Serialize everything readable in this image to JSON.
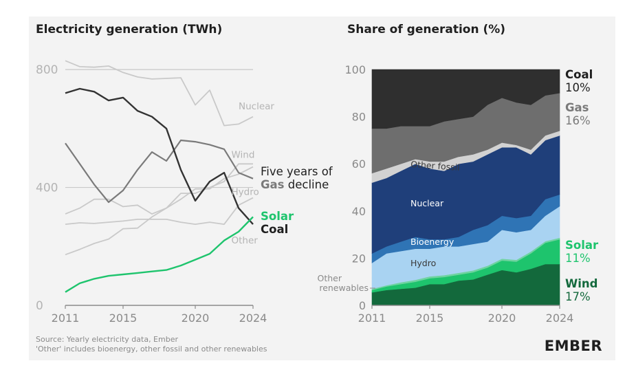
{
  "colors": {
    "background": "#f3f3f3",
    "axis": "#8a8a8a",
    "gridline": "#c8c8c8",
    "solar": "#1ec46d",
    "coal": "#333333",
    "gas": "#7a7a7a",
    "faded": "#c9c9c9",
    "label_grey": "#b4b4b4",
    "stack_coal": "#2f2f2f",
    "stack_gas": "#6e6e6e",
    "stack_other_fossil": "#d2d2d2",
    "stack_nuclear": "#1f3f7a",
    "stack_bioenergy": "#2f74b5",
    "stack_hydro": "#a9d3f2",
    "stack_other_renewables": "#6fd3a0",
    "stack_solar": "#1ec46d",
    "stack_wind": "#13693c",
    "brand": "#1f1f1f"
  },
  "chart_data": [
    {
      "type": "line",
      "title": "Electricity generation (TWh)",
      "xlim": [
        2011,
        2024
      ],
      "ylim": [
        0,
        840
      ],
      "yticks": [
        "0",
        "400",
        "800"
      ],
      "xticks": [
        "2011",
        "2015",
        "2020",
        "2024"
      ],
      "x": [
        2011,
        2012,
        2013,
        2014,
        2015,
        2016,
        2017,
        2018,
        2019,
        2020,
        2021,
        2022,
        2023,
        2024
      ],
      "series": [
        {
          "name": "Nuclear",
          "emphasis": "faded",
          "values": [
            830,
            810,
            808,
            812,
            790,
            775,
            768,
            770,
            772,
            680,
            730,
            610,
            615,
            640
          ]
        },
        {
          "name": "Wind",
          "emphasis": "faded",
          "values": [
            310,
            330,
            360,
            360,
            335,
            340,
            310,
            330,
            380,
            380,
            400,
            420,
            480,
            480
          ]
        },
        {
          "name": "Hydro",
          "emphasis": "faded",
          "values": [
            275,
            280,
            278,
            282,
            286,
            292,
            292,
            292,
            282,
            275,
            282,
            275,
            340,
            365
          ]
        },
        {
          "name": "Other",
          "emphasis": "faded",
          "values": [
            172,
            190,
            210,
            225,
            260,
            262,
            300,
            330,
            360,
            395,
            395,
            430,
            445,
            470
          ]
        },
        {
          "name": "Gas",
          "emphasis": "gas",
          "values": [
            550,
            480,
            410,
            350,
            390,
            460,
            520,
            490,
            560,
            555,
            545,
            530,
            450,
            430
          ]
        },
        {
          "name": "Coal",
          "emphasis": "coal",
          "values": [
            720,
            735,
            725,
            695,
            705,
            660,
            640,
            600,
            460,
            355,
            420,
            450,
            330,
            275
          ]
        },
        {
          "name": "Solar",
          "emphasis": "solar",
          "values": [
            45,
            75,
            90,
            100,
            105,
            110,
            115,
            120,
            135,
            155,
            175,
            220,
            250,
            300
          ]
        }
      ],
      "line_labels": [
        {
          "series": "Nuclear",
          "text": "Nuclear",
          "year": 2023.0,
          "value": 665
        },
        {
          "series": "Wind",
          "text": "Wind",
          "year": 2022.5,
          "value": 500
        },
        {
          "series": "Hydro",
          "text": "Hydro",
          "year": 2022.5,
          "value": 375
        },
        {
          "series": "Other",
          "text": "Other",
          "year": 2022.5,
          "value": 210
        }
      ],
      "annotation": {
        "line1": "Five years of",
        "line2_bold": "Gas",
        "line2_rest": " decline"
      },
      "end_labels": {
        "solar": "Solar",
        "coal": "Coal"
      }
    },
    {
      "type": "area",
      "title": "Share of generation (%)",
      "xlim": [
        2011,
        2024
      ],
      "ylim": [
        0,
        100
      ],
      "yticks": [
        "0",
        "20",
        "40",
        "60",
        "80",
        "100"
      ],
      "xticks": [
        "2011",
        "2015",
        "2020",
        "2024"
      ],
      "x": [
        2011,
        2012,
        2013,
        2014,
        2015,
        2016,
        2017,
        2018,
        2019,
        2020,
        2021,
        2022,
        2023,
        2024
      ],
      "stack_order": [
        "Wind",
        "Solar",
        "Other renewables",
        "Hydro",
        "Bioenergy",
        "Nuclear",
        "Other fossil",
        "Gas",
        "Coal"
      ],
      "boundaries": {
        "Wind": [
          5.5,
          6.5,
          7,
          7.5,
          9,
          9,
          10.5,
          11,
          13,
          15,
          14,
          15.5,
          17.5,
          17.5
        ],
        "Solar": [
          6.5,
          8,
          9,
          10,
          11.5,
          12,
          13,
          14,
          16,
          19,
          18.5,
          22,
          26.5,
          28
        ],
        "Other renewables": [
          7,
          8.5,
          9.8,
          10.8,
          12.3,
          12.8,
          13.8,
          14.8,
          16.8,
          19.8,
          19.3,
          22.8,
          27.2,
          28.7
        ],
        "Hydro": [
          18,
          22,
          23,
          24,
          24,
          25,
          25,
          26,
          27,
          32,
          31,
          32,
          38,
          42
        ],
        "Bioenergy": [
          22,
          25,
          27,
          29,
          28,
          28,
          29,
          32,
          34,
          38,
          37,
          38,
          45,
          47
        ],
        "Nuclear": [
          52,
          54,
          57,
          60,
          58,
          57,
          60,
          61,
          64,
          67,
          67,
          64,
          70,
          72
        ],
        "Other fossil": [
          56,
          58,
          60,
          62,
          61,
          61,
          63,
          64,
          66,
          69,
          68,
          66,
          72,
          74
        ],
        "Gas": [
          75,
          75,
          76,
          76,
          76,
          78,
          79,
          80,
          85,
          88,
          86,
          85,
          89,
          90
        ],
        "Coal": [
          100,
          100,
          100,
          100,
          100,
          100,
          100,
          100,
          100,
          100,
          100,
          100,
          100,
          100
        ]
      },
      "inner_labels": {
        "other_fossil": "Other fossil",
        "nuclear": "Nuclear",
        "bioenergy": "Bioenergy",
        "hydro": "Hydro",
        "other_renewables_1": "Other",
        "other_renewables_2": "renewables"
      },
      "end_labels": {
        "coal": {
          "name": "Coal",
          "value": "10%"
        },
        "gas": {
          "name": "Gas",
          "value": "16%"
        },
        "solar": {
          "name": "Solar",
          "value": "11%"
        },
        "wind": {
          "name": "Wind",
          "value": "17%"
        }
      }
    }
  ],
  "footer": {
    "source": "Source: Yearly electricity data, Ember",
    "note": "'Other' includes bioenergy, other fossil and other renewables",
    "brand": "EMBER"
  }
}
